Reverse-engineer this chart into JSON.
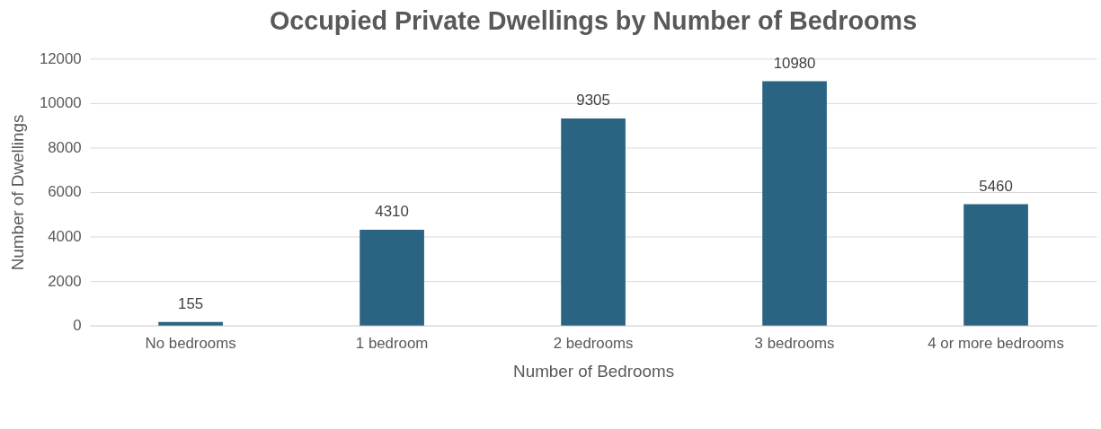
{
  "chart_data": {
    "type": "bar",
    "title": "Occupied Private Dwellings by Number of Bedrooms",
    "xlabel": "Number of Bedrooms",
    "ylabel": "Number of Dwellings",
    "categories": [
      "No bedrooms",
      "1 bedroom",
      "2 bedrooms",
      "3 bedrooms",
      "4 or more bedrooms"
    ],
    "values": [
      155,
      4310,
      9305,
      10980,
      5460
    ],
    "color": "#2a6482",
    "ylim": [
      0,
      12000
    ],
    "yticks": [
      0,
      2000,
      4000,
      6000,
      8000,
      10000,
      12000
    ],
    "grid": "y",
    "data_labels": true
  }
}
